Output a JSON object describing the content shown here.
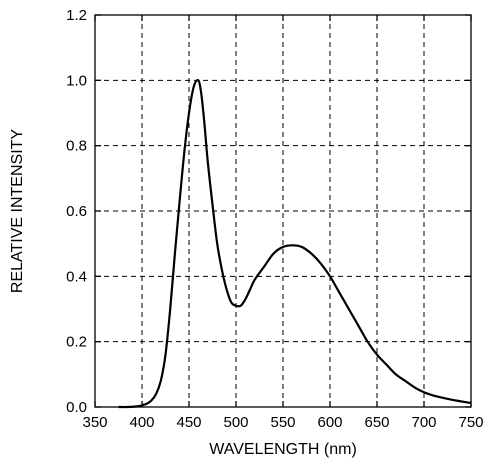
{
  "chart_data": {
    "type": "line",
    "xlabel": "WAVELENGTH (nm)",
    "ylabel": "RELATIVE INTENSITY",
    "xlim": [
      350,
      750
    ],
    "ylim": [
      0,
      1.2
    ],
    "x_ticks": [
      "350",
      "400",
      "450",
      "500",
      "550",
      "600",
      "650",
      "700",
      "750"
    ],
    "y_ticks": [
      "0.0",
      "0.2",
      "0.4",
      "0.6",
      "0.8",
      "1.0",
      "1.2"
    ],
    "grid": true,
    "series": [
      {
        "x": [
          375,
          385,
          395,
          400,
          405,
          410,
          415,
          420,
          425,
          430,
          435,
          440,
          445,
          450,
          455,
          460,
          463,
          466,
          470,
          475,
          480,
          485,
          490,
          495,
          500,
          505,
          510,
          515,
          520,
          530,
          540,
          550,
          560,
          570,
          580,
          590,
          600,
          610,
          620,
          630,
          640,
          650,
          660,
          670,
          680,
          690,
          700,
          710,
          720,
          730,
          740,
          750
        ],
        "y": [
          0.0,
          0.0,
          0.002,
          0.005,
          0.01,
          0.02,
          0.04,
          0.08,
          0.16,
          0.3,
          0.47,
          0.63,
          0.78,
          0.9,
          0.98,
          1.0,
          0.96,
          0.88,
          0.75,
          0.62,
          0.5,
          0.42,
          0.36,
          0.32,
          0.31,
          0.31,
          0.33,
          0.36,
          0.39,
          0.43,
          0.47,
          0.49,
          0.495,
          0.49,
          0.47,
          0.44,
          0.4,
          0.35,
          0.3,
          0.25,
          0.2,
          0.16,
          0.13,
          0.1,
          0.08,
          0.06,
          0.045,
          0.035,
          0.028,
          0.022,
          0.017,
          0.012
        ]
      }
    ]
  }
}
